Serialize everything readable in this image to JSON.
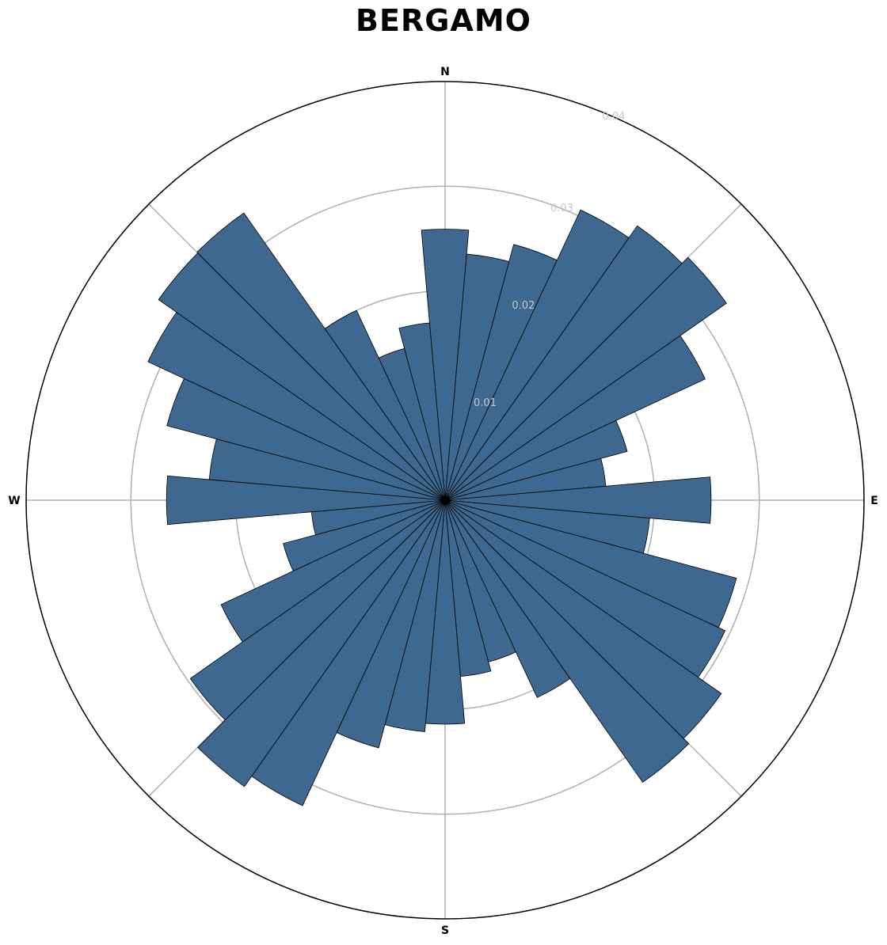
{
  "chart_data": {
    "type": "polar-bar",
    "title": "BERGAMO",
    "direction_labels": {
      "n": "N",
      "e": "E",
      "s": "S",
      "w": "W"
    },
    "radial_ticks": [
      "0.01",
      "0.02",
      "0.03",
      "0.04"
    ],
    "radial_tick_values": [
      0.01,
      0.02,
      0.03,
      0.04
    ],
    "rmax": 0.04,
    "bin_width_deg": 10,
    "bin_centers_deg": [
      0,
      10,
      20,
      30,
      40,
      50,
      60,
      70,
      80,
      90,
      100,
      110,
      120,
      130,
      140,
      150,
      160,
      170,
      180,
      190,
      200,
      210,
      220,
      230,
      240,
      250,
      260,
      270,
      280,
      290,
      300,
      310,
      320,
      330,
      340,
      350
    ],
    "values": [
      0.0259,
      0.0236,
      0.0253,
      0.0306,
      0.032,
      0.0328,
      0.0274,
      0.018,
      0.0154,
      0.0254,
      0.0196,
      0.0288,
      0.0295,
      0.0322,
      0.0329,
      0.0208,
      0.016,
      0.0169,
      0.0214,
      0.0222,
      0.0245,
      0.0322,
      0.0334,
      0.0297,
      0.0236,
      0.016,
      0.0128,
      0.0266,
      0.0226,
      0.0275,
      0.0313,
      0.0334,
      0.0335,
      0.02,
      0.015,
      0.017
    ],
    "grid": true,
    "bar_color": "#3f6890",
    "bar_edge_color": "#000000"
  }
}
